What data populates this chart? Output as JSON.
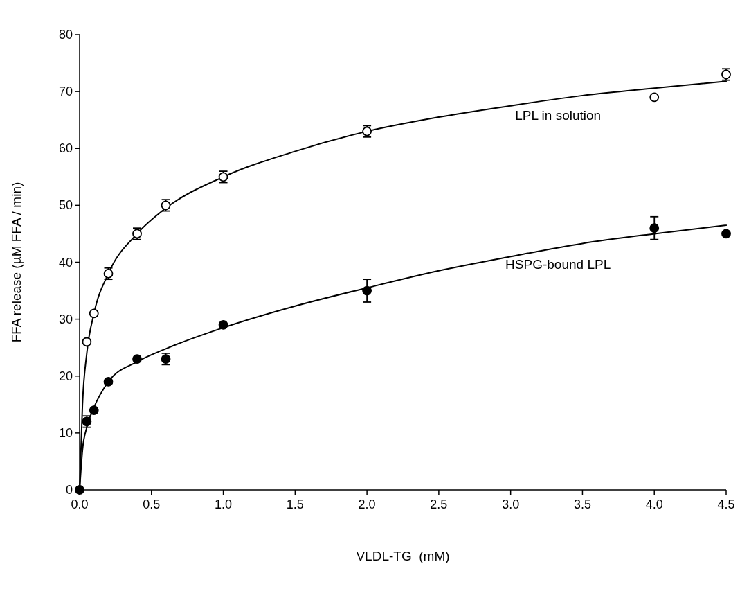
{
  "chart_data": {
    "type": "scatter",
    "xlabel": "VLDL-TG  (mM)",
    "ylabel": "FFA release (µM FFA / min)",
    "xlim": [
      0,
      4.5
    ],
    "ylim": [
      0,
      80
    ],
    "xticks": [
      {
        "value": 0,
        "label": "0.0"
      },
      {
        "value": 0.5,
        "label": "0.5"
      },
      {
        "value": 1,
        "label": "1.0"
      },
      {
        "value": 1.5,
        "label": "1.5"
      },
      {
        "value": 2,
        "label": "2.0"
      },
      {
        "value": 2.5,
        "label": "2.5"
      },
      {
        "value": 3,
        "label": "3.0"
      },
      {
        "value": 3.5,
        "label": "3.5"
      },
      {
        "value": 4,
        "label": "4.0"
      },
      {
        "value": 4.5,
        "label": "4.5"
      }
    ],
    "yticks": [
      0,
      10,
      20,
      30,
      40,
      50,
      60,
      70,
      80
    ],
    "grid": false,
    "marker": "circle",
    "series": [
      {
        "type": "line",
        "name": "LPL in solution",
        "color": "#000000",
        "marker": "none",
        "line_style": "solid",
        "x": [
          0,
          0.02,
          0.05,
          0.1,
          0.2,
          0.4,
          0.6,
          1,
          1.5,
          2,
          2.5,
          3,
          3.5,
          4,
          4.5
        ],
        "values": [
          0,
          15,
          24,
          31,
          38,
          45,
          49.5,
          55,
          59.5,
          63,
          65.5,
          67.5,
          69.3,
          70.6,
          71.8
        ]
      },
      {
        "type": "line",
        "name": "HSPG-bound LPL",
        "color": "#000000",
        "marker": "none",
        "line_style": "solid",
        "x": [
          0,
          0.02,
          0.05,
          0.1,
          0.2,
          0.4,
          0.6,
          1,
          1.5,
          2,
          2.5,
          3,
          3.5,
          4,
          4.5
        ],
        "values": [
          0,
          7,
          11,
          14.5,
          19,
          22.5,
          24.8,
          28.5,
          32.3,
          35.5,
          38.5,
          41,
          43.3,
          45,
          46.5
        ]
      },
      {
        "color": "#ffffff",
        "x": [
          0.05,
          0.1,
          0.2,
          0.4,
          0.6,
          1,
          2,
          4,
          4.5
        ],
        "values": [
          26,
          31,
          38,
          45,
          50,
          55,
          63,
          69,
          73
        ],
        "errors": [
          null,
          null,
          1,
          1,
          1,
          1,
          1,
          null,
          1
        ]
      },
      {
        "color": "#000000",
        "x": [
          0,
          0.05,
          0.1,
          0.2,
          0.4,
          0.6,
          1,
          2,
          4,
          4.5
        ],
        "values": [
          0,
          12,
          14,
          19,
          23,
          23,
          29,
          35,
          46,
          45
        ],
        "errors": [
          null,
          1,
          null,
          null,
          null,
          1,
          null,
          2,
          2,
          null
        ]
      }
    ]
  }
}
